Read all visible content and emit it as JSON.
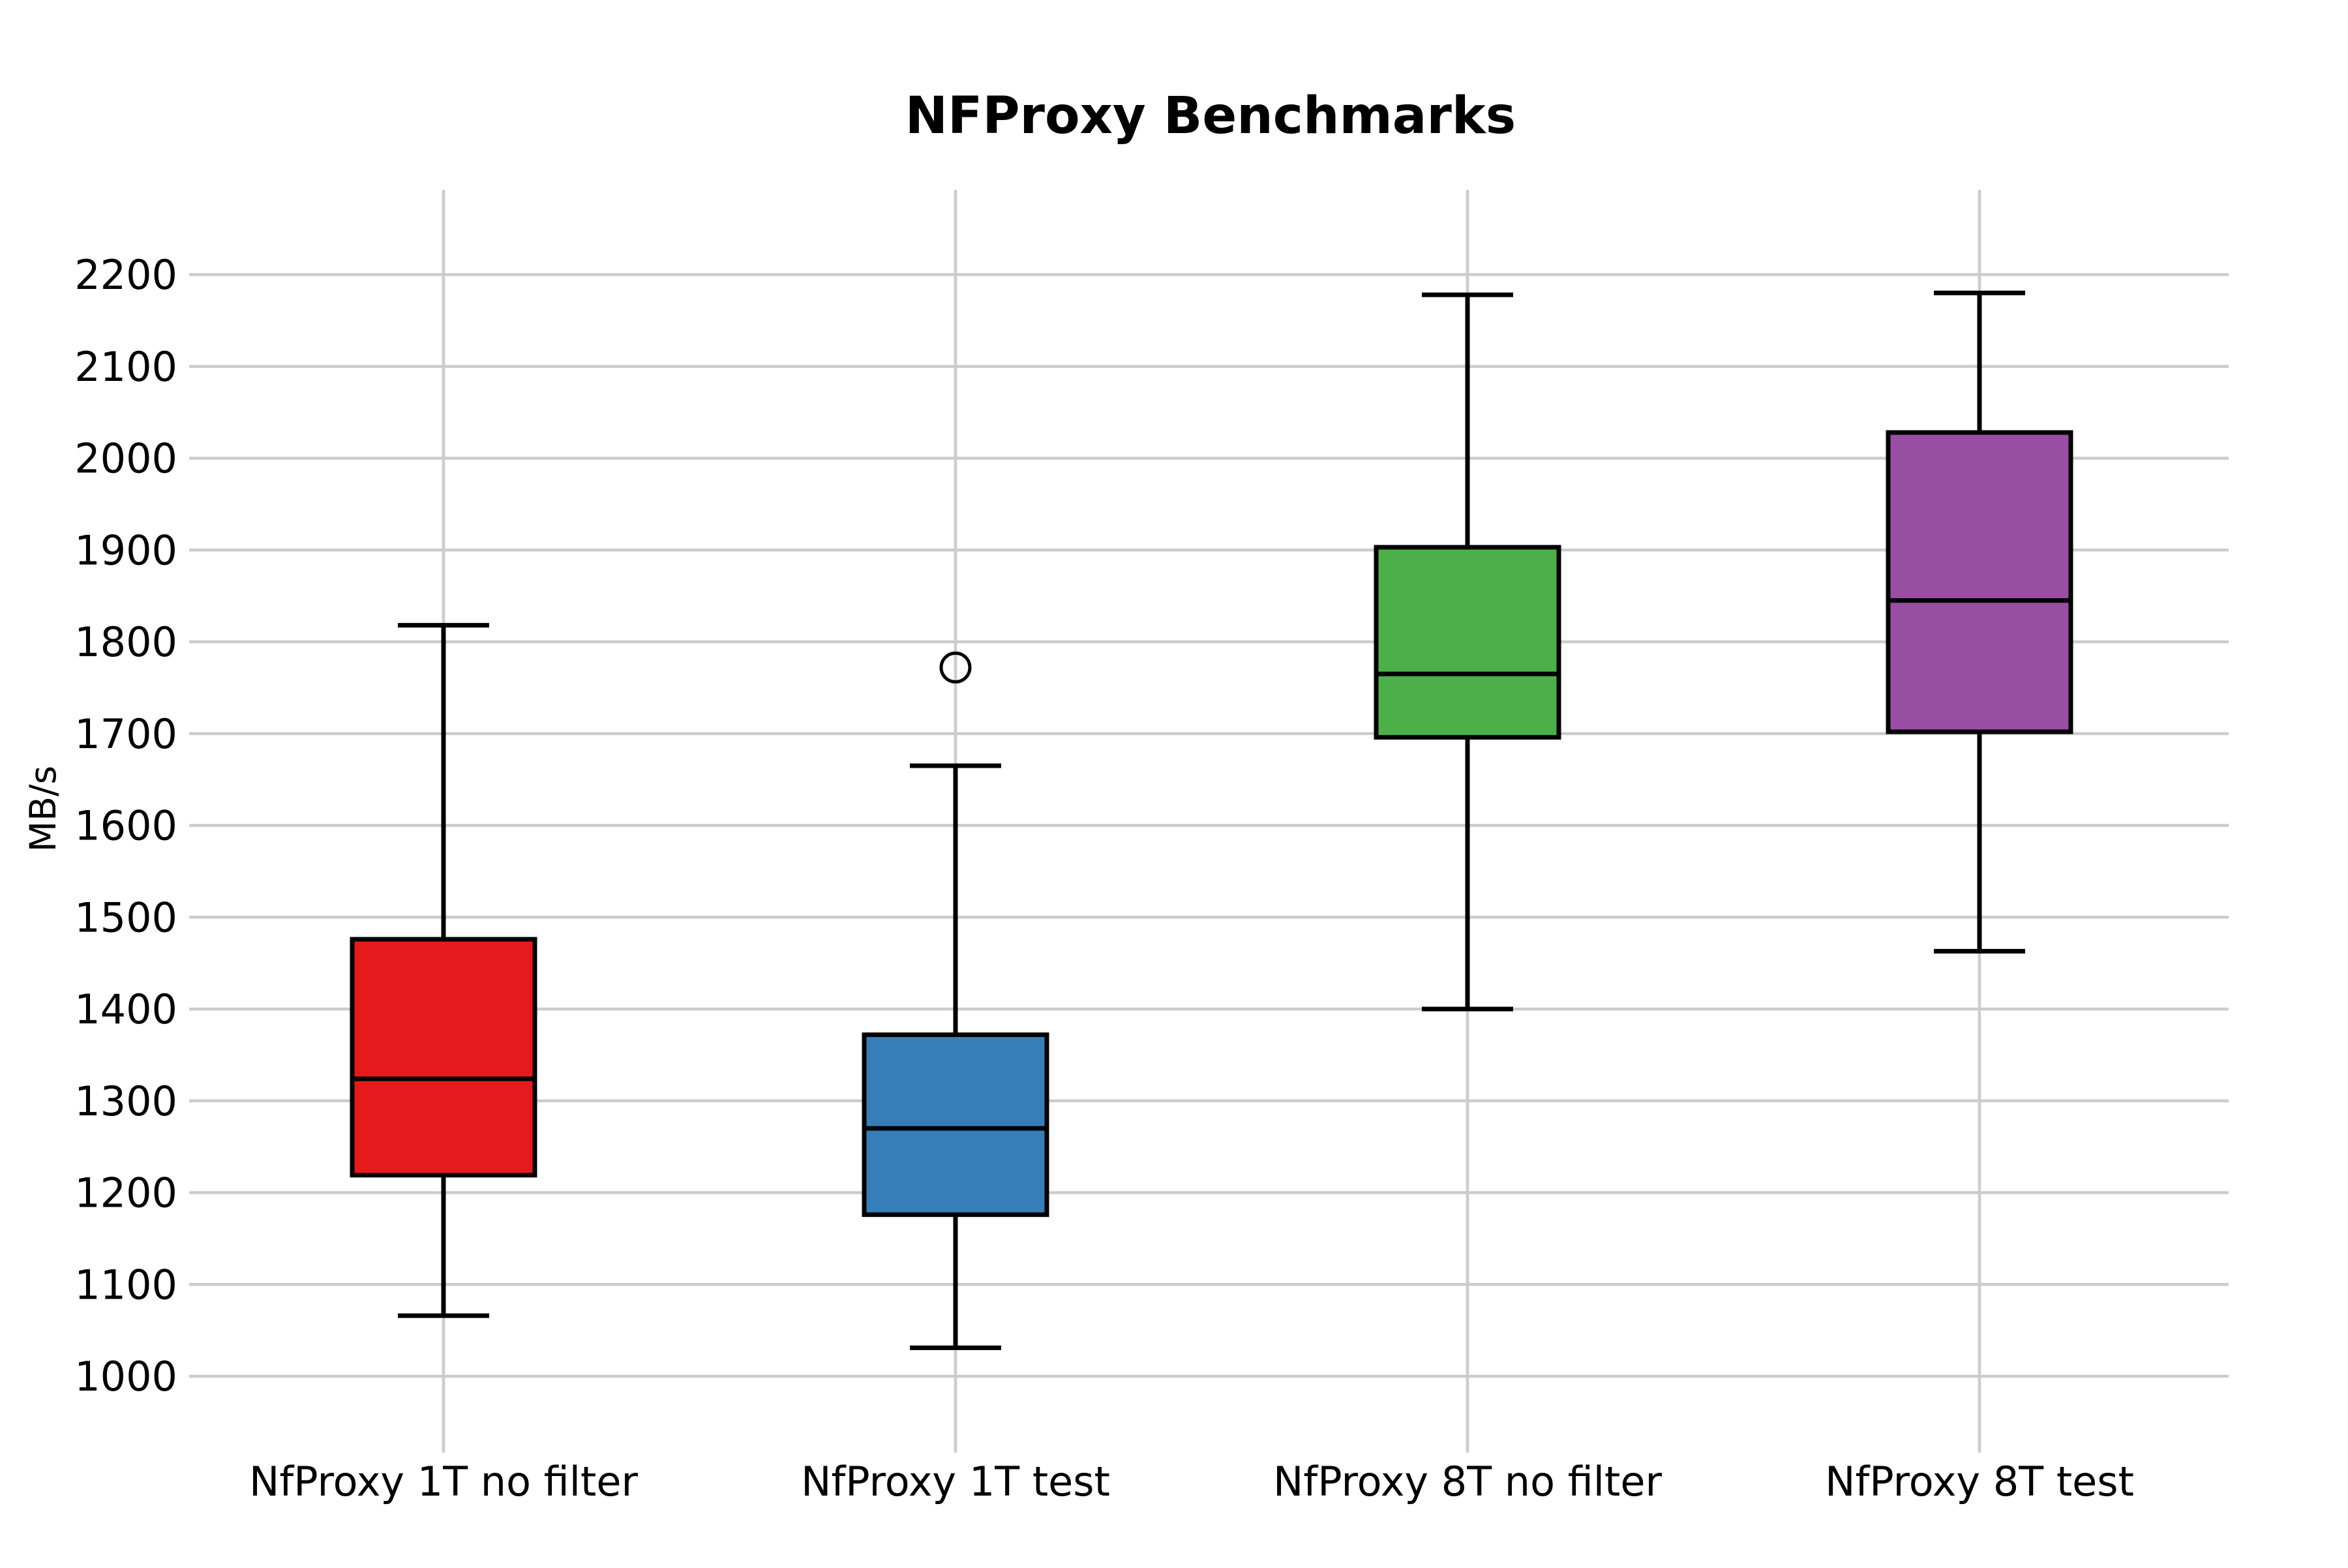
{
  "chart_data": {
    "type": "box",
    "title": "NFProxy Benchmarks",
    "ylabel": "MB/s",
    "xlabel": "",
    "grid": true,
    "legend": "none",
    "y_ticks": [
      1000,
      1100,
      1200,
      1300,
      1400,
      1500,
      1600,
      1700,
      1800,
      1900,
      2000,
      2100,
      2200
    ],
    "ylim": [
      917,
      2292
    ],
    "series": [
      {
        "label": "NfProxy 1T no filter",
        "color": "#e41a1c",
        "whisker_low": 1066,
        "q1": 1219,
        "median": 1324,
        "q3": 1476,
        "whisker_high": 1818,
        "outliers": []
      },
      {
        "label": "NfProxy 1T test",
        "color": "#377eb8",
        "whisker_low": 1031,
        "q1": 1176,
        "median": 1270,
        "q3": 1372,
        "whisker_high": 1665,
        "outliers": [
          1772
        ]
      },
      {
        "label": "NfProxy 8T no filter",
        "color": "#4daf4a",
        "whisker_low": 1400,
        "q1": 1696,
        "median": 1765,
        "q3": 1903,
        "whisker_high": 2178,
        "outliers": []
      },
      {
        "label": "NfProxy 8T test",
        "color": "#984ea3",
        "whisker_low": 1463,
        "q1": 1702,
        "median": 1845,
        "q3": 2028,
        "whisker_high": 2180,
        "outliers": []
      }
    ]
  }
}
